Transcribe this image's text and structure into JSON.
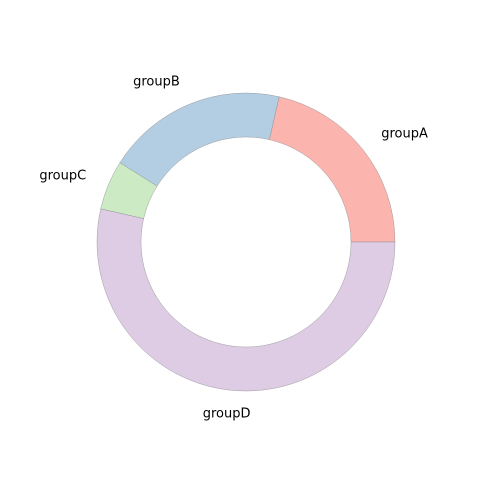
{
  "chart_data": {
    "type": "pie",
    "variant": "donut",
    "title": "",
    "categories": [
      "groupA",
      "groupB",
      "groupC",
      "groupD"
    ],
    "values": [
      12,
      11,
      3,
      30
    ],
    "colors": [
      "#fbb4ae",
      "#b3cde3",
      "#ccebc5",
      "#decbe4"
    ],
    "start_angle_deg": 0,
    "direction": "counterclockwise",
    "legend": "none"
  }
}
